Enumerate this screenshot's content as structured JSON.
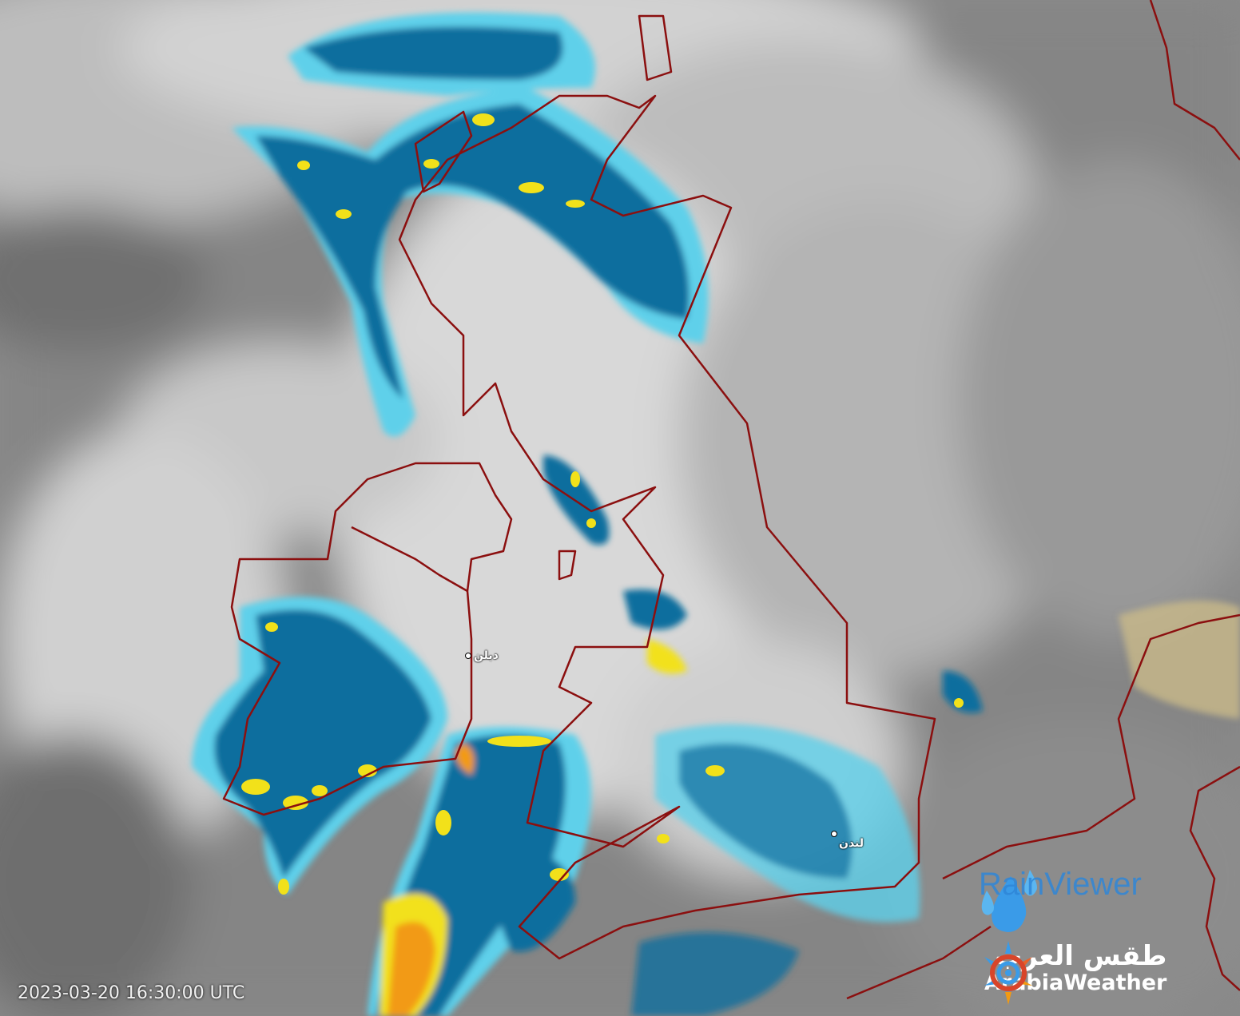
{
  "map": {
    "timestamp": "2023-03-20 16:30:00 UTC",
    "cities": [
      {
        "name": "دبلن"
      },
      {
        "name": "لندن"
      }
    ],
    "colors": {
      "coastline": "#8b0f0f",
      "light_rain": "#5fd0ea",
      "moderate_rain": "#0f6e9e",
      "heavy_rain": "#f2e11a",
      "very_heavy_rain": "#f29a12",
      "cloud": "#d6d6d6",
      "clear": "#7c7c7c"
    }
  },
  "branding": {
    "rainviewer": "RainViewer",
    "arabiaweather_ar": "طقس العرب",
    "arabiaweather_en": "ArabiaWeather",
    "icons": [
      "raindrop-logo-icon",
      "sun-swirl-logo-icon"
    ]
  }
}
